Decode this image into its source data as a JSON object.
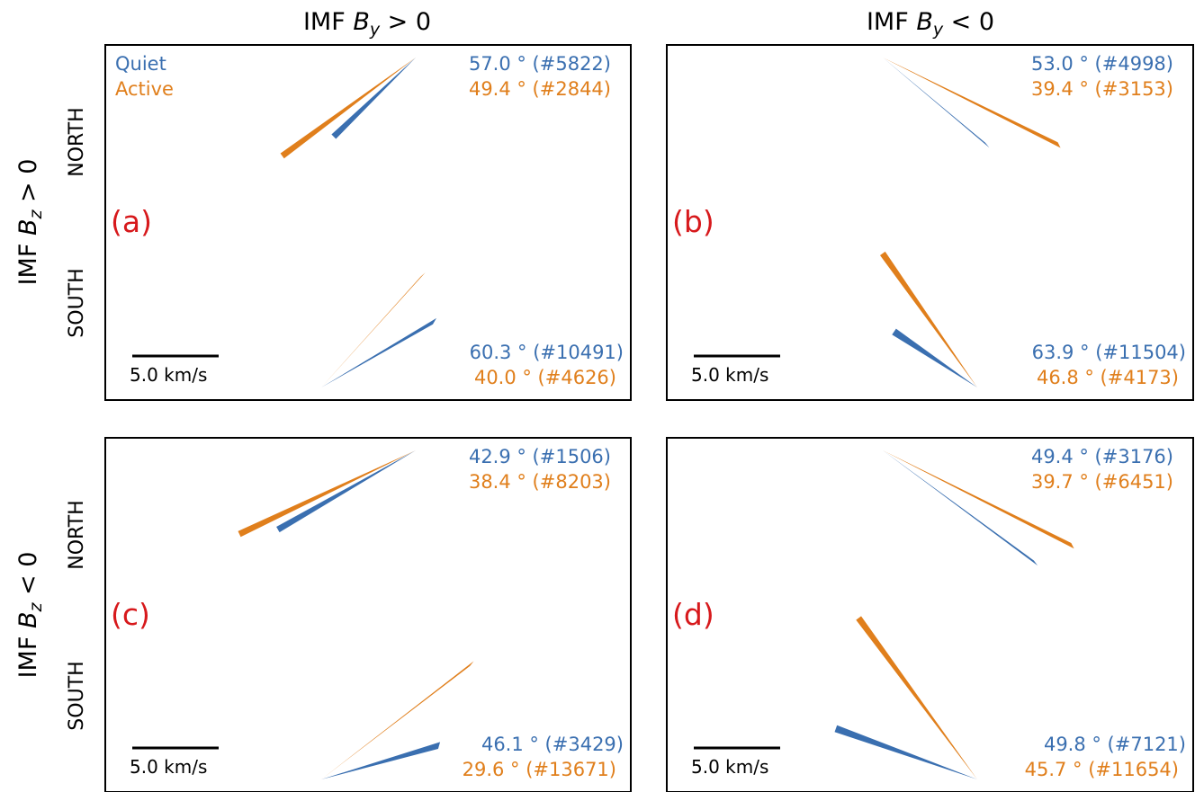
{
  "colors": {
    "quiet": "#3a6fb0",
    "active": "#e07f1c",
    "label": "#d7191c"
  },
  "column_titles": [
    {
      "prefix": "IMF ",
      "var": "B",
      "sub": "y",
      "rel": " > 0"
    },
    {
      "prefix": "IMF ",
      "var": "B",
      "sub": "y",
      "rel": " < 0"
    }
  ],
  "row_titles": [
    {
      "prefix": "IMF ",
      "var": "B",
      "sub": "z",
      "rel": " > 0"
    },
    {
      "prefix": "IMF ",
      "var": "B",
      "sub": "z",
      "rel": " < 0"
    }
  ],
  "hemispheres": [
    "NORTH",
    "SOUTH"
  ],
  "legend": {
    "quiet": "Quiet",
    "active": "Active"
  },
  "scale_bar": {
    "label": "5.0 km/s",
    "value": 5.0
  },
  "chart_data": [
    {
      "type": "vector",
      "panel": "(a)",
      "north": {
        "quiet": {
          "angle": 57.0,
          "count": 5822,
          "text": "57.0 ° (#5822)"
        },
        "active": {
          "angle": 49.4,
          "count": 2844,
          "text": "49.4 ° (#2844)"
        }
      },
      "south": {
        "quiet": {
          "angle": 60.3,
          "count": 10491,
          "text": "60.3 ° (#10491)"
        },
        "active": {
          "angle": 40.0,
          "count": 4626,
          "text": "40.0 ° (#4626)"
        }
      }
    },
    {
      "type": "vector",
      "panel": "(b)",
      "north": {
        "quiet": {
          "angle": 53.0,
          "count": 4998,
          "text": "53.0 ° (#4998)"
        },
        "active": {
          "angle": 39.4,
          "count": 3153,
          "text": "39.4 ° (#3153)"
        }
      },
      "south": {
        "quiet": {
          "angle": 63.9,
          "count": 11504,
          "text": "63.9 ° (#11504)"
        },
        "active": {
          "angle": 46.8,
          "count": 4173,
          "text": "46.8 ° (#4173)"
        }
      }
    },
    {
      "type": "vector",
      "panel": "(c)",
      "north": {
        "quiet": {
          "angle": 42.9,
          "count": 1506,
          "text": "42.9 ° (#1506)"
        },
        "active": {
          "angle": 38.4,
          "count": 8203,
          "text": "38.4 ° (#8203)"
        }
      },
      "south": {
        "quiet": {
          "angle": 46.1,
          "count": 3429,
          "text": "46.1 ° (#3429)"
        },
        "active": {
          "angle": 29.6,
          "count": 13671,
          "text": "29.6 ° (#13671)"
        }
      }
    },
    {
      "type": "vector",
      "panel": "(d)",
      "north": {
        "quiet": {
          "angle": 49.4,
          "count": 3176,
          "text": "49.4 ° (#3176)"
        },
        "active": {
          "angle": 39.7,
          "count": 6451,
          "text": "39.7 ° (#6451)"
        }
      },
      "south": {
        "quiet": {
          "angle": 49.8,
          "count": 7121,
          "text": "49.8 ° (#7121)"
        },
        "active": {
          "angle": 45.7,
          "count": 11654,
          "text": "45.7 ° (#11654)"
        }
      }
    }
  ]
}
